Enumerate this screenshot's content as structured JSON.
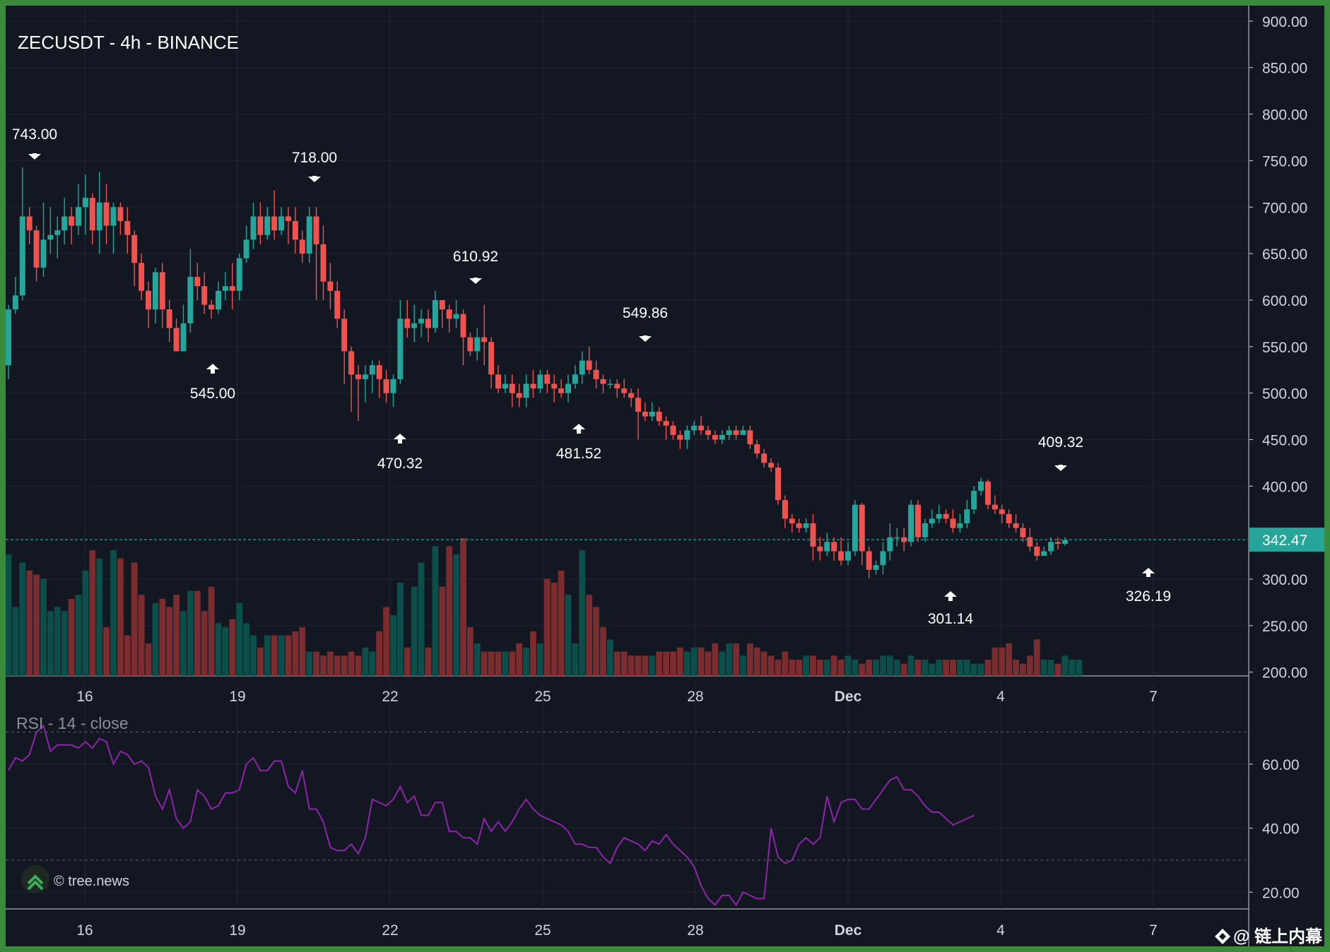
{
  "chart_title": "ZECUSDT - 4h - BINANCE",
  "rsi_title": "RSI - 14 - close",
  "watermark": "© tree.news",
  "footer_tag": "@ 链上内幕",
  "colors": {
    "background": "#131722",
    "up": "#26a69a",
    "down": "#ef5350",
    "up_volume": "#0c4e4a",
    "down_volume": "#7a2c2f",
    "rsi_line": "#8e24aa",
    "last_price_badge": "#26a69a",
    "frame": "#3a8a3c"
  },
  "chart_data": [
    {
      "type": "candlestick",
      "title": "ZECUSDT - 4h - BINANCE",
      "ylim": [
        196,
        906
      ],
      "y_ticks": [
        "900.00",
        "850.00",
        "800.00",
        "750.00",
        "700.00",
        "650.00",
        "600.00",
        "550.00",
        "500.00",
        "450.00",
        "400.00",
        "300.00",
        "250.00",
        "200.00"
      ],
      "x_ticks": [
        "16",
        "19",
        "22",
        "25",
        "28",
        "Dec",
        "4",
        "7"
      ],
      "last_price": "342.47",
      "ohlc": [
        [
          530,
          590,
          515,
          595
        ],
        [
          590,
          605,
          585,
          625
        ],
        [
          605,
          690,
          600,
          743
        ],
        [
          690,
          675,
          660,
          700
        ],
        [
          675,
          635,
          620,
          680
        ],
        [
          635,
          665,
          625,
          705
        ],
        [
          665,
          670,
          650,
          700
        ],
        [
          670,
          675,
          645,
          690
        ],
        [
          675,
          690,
          660,
          710
        ],
        [
          690,
          680,
          660,
          700
        ],
        [
          680,
          700,
          670,
          725
        ],
        [
          700,
          710,
          670,
          735
        ],
        [
          710,
          675,
          660,
          715
        ],
        [
          675,
          705,
          650,
          738
        ],
        [
          705,
          680,
          660,
          725
        ],
        [
          680,
          700,
          650,
          705
        ],
        [
          700,
          685,
          670,
          705
        ],
        [
          685,
          670,
          650,
          700
        ],
        [
          670,
          640,
          615,
          675
        ],
        [
          640,
          610,
          600,
          650
        ],
        [
          610,
          590,
          570,
          620
        ],
        [
          590,
          630,
          575,
          635
        ],
        [
          630,
          590,
          570,
          640
        ],
        [
          590,
          570,
          555,
          600
        ],
        [
          570,
          545,
          545,
          580
        ],
        [
          545,
          575,
          550,
          595
        ],
        [
          575,
          625,
          565,
          655
        ],
        [
          625,
          615,
          600,
          640
        ],
        [
          615,
          595,
          585,
          630
        ],
        [
          595,
          590,
          580,
          600
        ],
        [
          590,
          610,
          585,
          620
        ],
        [
          610,
          615,
          600,
          630
        ],
        [
          615,
          610,
          590,
          640
        ],
        [
          610,
          645,
          600,
          650
        ],
        [
          645,
          665,
          640,
          680
        ],
        [
          665,
          690,
          655,
          705
        ],
        [
          690,
          670,
          660,
          705
        ],
        [
          670,
          690,
          665,
          700
        ],
        [
          690,
          675,
          665,
          718
        ],
        [
          675,
          690,
          670,
          700
        ],
        [
          690,
          685,
          660,
          700
        ],
        [
          685,
          665,
          650,
          700
        ],
        [
          665,
          650,
          640,
          675
        ],
        [
          650,
          690,
          640,
          700
        ],
        [
          690,
          660,
          600,
          700
        ],
        [
          660,
          620,
          600,
          680
        ],
        [
          620,
          610,
          590,
          640
        ],
        [
          610,
          580,
          570,
          620
        ],
        [
          580,
          545,
          510,
          590
        ],
        [
          545,
          520,
          480,
          550
        ],
        [
          520,
          515,
          470,
          530
        ],
        [
          515,
          520,
          490,
          530
        ],
        [
          520,
          530,
          500,
          535
        ],
        [
          530,
          515,
          495,
          535
        ],
        [
          515,
          500,
          490,
          525
        ],
        [
          500,
          515,
          485,
          520
        ],
        [
          515,
          580,
          510,
          600
        ],
        [
          580,
          570,
          560,
          600
        ],
        [
          570,
          575,
          555,
          595
        ],
        [
          575,
          580,
          560,
          590
        ],
        [
          580,
          570,
          555,
          590
        ],
        [
          570,
          600,
          565,
          610
        ],
        [
          600,
          590,
          570,
          600
        ],
        [
          590,
          580,
          565,
          595
        ],
        [
          580,
          585,
          570,
          600
        ],
        [
          585,
          560,
          530,
          590
        ],
        [
          560,
          545,
          540,
          565
        ],
        [
          545,
          560,
          535,
          570
        ],
        [
          560,
          555,
          530,
          595
        ],
        [
          555,
          520,
          505,
          560
        ],
        [
          520,
          505,
          500,
          530
        ],
        [
          505,
          510,
          500,
          520
        ],
        [
          510,
          500,
          485,
          520
        ],
        [
          500,
          495,
          485,
          510
        ],
        [
          495,
          510,
          485,
          520
        ],
        [
          510,
          505,
          495,
          525
        ],
        [
          505,
          520,
          500,
          525
        ],
        [
          520,
          510,
          500,
          525
        ],
        [
          510,
          505,
          490,
          520
        ],
        [
          505,
          500,
          495,
          515
        ],
        [
          500,
          510,
          490,
          520
        ],
        [
          510,
          520,
          505,
          530
        ],
        [
          520,
          535,
          510,
          545
        ],
        [
          535,
          525,
          520,
          550
        ],
        [
          525,
          515,
          505,
          535
        ],
        [
          515,
          510,
          500,
          520
        ],
        [
          510,
          510,
          505,
          515
        ],
        [
          510,
          505,
          495,
          515
        ],
        [
          505,
          500,
          495,
          515
        ],
        [
          500,
          495,
          485,
          505
        ],
        [
          495,
          480,
          450,
          505
        ],
        [
          480,
          475,
          470,
          490
        ],
        [
          475,
          480,
          470,
          490
        ],
        [
          480,
          470,
          465,
          485
        ],
        [
          470,
          465,
          450,
          475
        ],
        [
          465,
          455,
          450,
          470
        ],
        [
          455,
          450,
          440,
          460
        ],
        [
          450,
          460,
          440,
          465
        ],
        [
          460,
          465,
          455,
          470
        ],
        [
          465,
          460,
          455,
          475
        ],
        [
          460,
          455,
          450,
          465
        ],
        [
          455,
          450,
          445,
          460
        ],
        [
          450,
          455,
          445,
          460
        ],
        [
          455,
          460,
          450,
          465
        ],
        [
          460,
          455,
          450,
          465
        ],
        [
          455,
          460,
          455,
          465
        ],
        [
          460,
          445,
          440,
          465
        ],
        [
          445,
          435,
          430,
          450
        ],
        [
          435,
          425,
          420,
          440
        ],
        [
          425,
          420,
          415,
          430
        ],
        [
          420,
          385,
          380,
          425
        ],
        [
          385,
          365,
          355,
          390
        ],
        [
          365,
          360,
          350,
          370
        ],
        [
          360,
          355,
          350,
          365
        ],
        [
          355,
          360,
          350,
          365
        ],
        [
          360,
          335,
          320,
          370
        ],
        [
          335,
          330,
          320,
          345
        ],
        [
          330,
          340,
          325,
          350
        ],
        [
          340,
          330,
          320,
          345
        ],
        [
          330,
          320,
          315,
          345
        ],
        [
          320,
          330,
          315,
          340
        ],
        [
          330,
          380,
          325,
          385
        ],
        [
          380,
          330,
          315,
          382
        ],
        [
          330,
          310,
          301,
          335
        ],
        [
          310,
          315,
          305,
          320
        ],
        [
          315,
          330,
          305,
          340
        ],
        [
          330,
          345,
          320,
          360
        ],
        [
          345,
          345,
          335,
          355
        ],
        [
          345,
          340,
          330,
          355
        ],
        [
          340,
          380,
          335,
          385
        ],
        [
          380,
          345,
          340,
          385
        ],
        [
          345,
          360,
          340,
          365
        ],
        [
          360,
          365,
          355,
          375
        ],
        [
          365,
          370,
          360,
          380
        ],
        [
          370,
          365,
          360,
          375
        ],
        [
          365,
          355,
          350,
          375
        ],
        [
          355,
          360,
          350,
          370
        ],
        [
          360,
          375,
          355,
          385
        ],
        [
          375,
          395,
          370,
          400
        ],
        [
          395,
          405,
          390,
          409
        ],
        [
          405,
          380,
          375,
          407
        ],
        [
          380,
          375,
          370,
          390
        ],
        [
          375,
          370,
          360,
          380
        ],
        [
          370,
          360,
          355,
          375
        ],
        [
          360,
          355,
          350,
          370
        ],
        [
          355,
          345,
          340,
          360
        ],
        [
          345,
          335,
          330,
          355
        ],
        [
          335,
          325,
          320,
          340
        ],
        [
          325,
          330,
          326,
          335
        ],
        [
          330,
          340,
          326,
          345
        ],
        [
          340,
          338,
          332,
          345
        ],
        [
          338,
          342,
          336,
          345
        ]
      ],
      "volume": [
        150,
        85,
        140,
        130,
        125,
        120,
        80,
        85,
        80,
        95,
        100,
        130,
        155,
        145,
        60,
        155,
        145,
        50,
        140,
        100,
        40,
        90,
        95,
        85,
        100,
        80,
        105,
        105,
        80,
        110,
        65,
        60,
        70,
        90,
        65,
        50,
        35,
        50,
        50,
        50,
        50,
        55,
        60,
        30,
        30,
        25,
        30,
        25,
        25,
        30,
        25,
        35,
        30,
        55,
        85,
        75,
        115,
        35,
        110,
        140,
        35,
        160,
        110,
        160,
        150,
        170,
        60,
        40,
        30,
        30,
        30,
        30,
        30,
        40,
        35,
        55,
        40,
        120,
        115,
        130,
        100,
        40,
        155,
        100,
        85,
        60,
        45,
        30,
        30,
        25,
        25,
        25,
        25,
        30,
        30,
        30,
        35,
        30,
        35,
        35,
        30,
        40,
        30,
        40,
        40,
        25,
        40,
        35,
        30,
        25,
        20,
        30,
        20,
        20,
        25,
        25,
        20,
        20,
        25,
        20,
        25,
        20,
        15,
        20,
        20,
        25,
        25,
        20,
        15,
        25,
        20,
        20,
        15,
        20,
        20,
        20,
        20,
        20,
        15,
        15,
        20,
        35,
        35,
        40,
        20,
        15,
        25,
        45,
        20,
        20,
        15,
        25,
        20,
        20
      ],
      "markers": [
        {
          "label": "743.00",
          "type": "high"
        },
        {
          "label": "545.00",
          "type": "low"
        },
        {
          "label": "718.00",
          "type": "high"
        },
        {
          "label": "470.32",
          "type": "low"
        },
        {
          "label": "610.92",
          "type": "high"
        },
        {
          "label": "481.52",
          "type": "low"
        },
        {
          "label": "549.86",
          "type": "high"
        },
        {
          "label": "301.14",
          "type": "low"
        },
        {
          "label": "409.32",
          "type": "high"
        },
        {
          "label": "326.19",
          "type": "low"
        }
      ]
    },
    {
      "type": "line",
      "title": "RSI - 14 - close",
      "ylim": [
        15,
        75
      ],
      "y_ticks": [
        "60.00",
        "40.00",
        "20.00"
      ],
      "bands": [
        70,
        30
      ],
      "x_ticks": [
        "16",
        "19",
        "22",
        "25",
        "28",
        "Dec",
        "4",
        "7"
      ],
      "values": [
        58,
        62,
        61,
        63,
        70,
        72,
        64,
        66,
        66,
        66,
        65,
        67,
        65,
        68,
        67,
        60,
        64,
        63,
        60,
        61,
        59,
        50,
        46,
        52,
        43,
        40,
        42,
        52,
        50,
        46,
        47,
        51,
        51,
        52,
        60,
        62,
        58,
        58,
        61,
        61,
        53,
        51,
        58,
        46,
        46,
        42,
        34,
        33,
        33,
        35,
        32,
        37,
        49,
        48,
        47,
        49,
        53,
        48,
        50,
        44,
        44,
        48,
        48,
        39,
        39,
        37,
        37,
        35,
        43,
        39,
        42,
        39,
        42,
        46,
        49,
        46,
        44,
        43,
        42,
        41,
        39,
        35,
        35,
        34,
        34,
        31,
        29,
        34,
        37,
        36,
        35,
        33,
        36,
        35,
        38,
        35,
        33,
        31,
        28,
        22,
        18,
        16,
        19,
        19,
        16,
        20,
        19,
        18,
        18,
        40,
        31,
        29,
        30,
        35,
        37,
        35,
        37,
        50,
        42,
        48,
        49,
        49,
        46,
        46,
        49,
        52,
        55,
        56,
        52,
        52,
        50,
        47,
        45,
        45,
        43,
        41,
        42,
        43,
        44
      ]
    }
  ]
}
